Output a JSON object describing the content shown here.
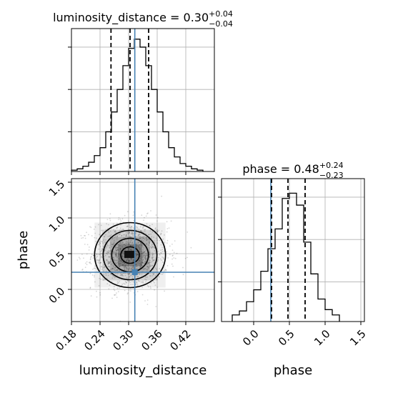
{
  "chart_data": {
    "type": "corner",
    "colors": {
      "truth": "#4682b4",
      "hist": "#000000",
      "grid": "#b0b0b0",
      "quantile": "#000000"
    },
    "parameters": [
      {
        "name": "luminosity_distance",
        "xlabel": "luminosity_distance"
      },
      {
        "name": "phase",
        "xlabel": "phase",
        "ylabel": "phase"
      }
    ],
    "grid": true,
    "panels": {
      "hist_ld": {
        "title": {
          "prefix": "luminosity_distance = 0.30",
          "sup": "+0.04",
          "sub": "−0.04"
        },
        "xlim": [
          0.18,
          0.48
        ],
        "ylim": [
          0,
          1.08
        ],
        "bin_edges": [
          0.18,
          0.192,
          0.204,
          0.216,
          0.228,
          0.24,
          0.252,
          0.264,
          0.276,
          0.288,
          0.3,
          0.312,
          0.324,
          0.336,
          0.348,
          0.36,
          0.372,
          0.384,
          0.396,
          0.408,
          0.42,
          0.432,
          0.444,
          0.456
        ],
        "counts": [
          0.01,
          0.02,
          0.04,
          0.07,
          0.12,
          0.18,
          0.3,
          0.45,
          0.62,
          0.8,
          0.93,
          1.0,
          0.94,
          0.8,
          0.62,
          0.45,
          0.3,
          0.18,
          0.11,
          0.06,
          0.04,
          0.02,
          0.01
        ],
        "quantiles": [
          0.263,
          0.303,
          0.342
        ],
        "truth": 0.313,
        "xticks": [
          0.18,
          0.24,
          0.3,
          0.36,
          0.42
        ],
        "yticks": [
          0.3,
          0.62,
          0.94
        ]
      },
      "hist_phase": {
        "title": {
          "prefix": "phase = 0.48",
          "sup": "+0.24",
          "sub": "−0.23"
        },
        "xlim": [
          -0.45,
          1.55
        ],
        "ylim": [
          0,
          1.08
        ],
        "bin_edges": [
          -0.3,
          -0.2,
          -0.1,
          0.0,
          0.1,
          0.2,
          0.3,
          0.4,
          0.5,
          0.6,
          0.7,
          0.8,
          0.9,
          1.0,
          1.1,
          1.2
        ],
        "counts": [
          0.05,
          0.08,
          0.15,
          0.24,
          0.38,
          0.55,
          0.7,
          0.93,
          0.97,
          0.88,
          0.6,
          0.36,
          0.17,
          0.09,
          0.05
        ],
        "quantiles": [
          0.25,
          0.48,
          0.72
        ],
        "truth": 0.24,
        "xticks": [
          0.0,
          0.5,
          1.0,
          1.5
        ],
        "xtick_labels": [
          "0.0",
          "0.5",
          "1.0",
          "1.5"
        ],
        "yticks": [
          0.3,
          0.62,
          0.94
        ]
      },
      "scatter": {
        "xlim": [
          0.18,
          0.48
        ],
        "ylim": [
          -0.45,
          1.55
        ],
        "xticks": [
          0.18,
          0.24,
          0.3,
          0.36,
          0.42
        ],
        "xtick_labels": [
          "0.18",
          "0.24",
          "0.30",
          "0.36",
          "0.42"
        ],
        "yticks": [
          0.0,
          0.5,
          1.0,
          1.5
        ],
        "ytick_labels": [
          "0.0",
          "0.5",
          "1.0",
          "1.5"
        ],
        "center": [
          0.303,
          0.48
        ],
        "sigma": [
          0.04,
          0.24
        ],
        "truth": [
          0.313,
          0.24
        ],
        "contour_levels": [
          {
            "rx": 0.0195,
            "ry": 0.115
          },
          {
            "rx": 0.0385,
            "ry": 0.235
          },
          {
            "rx": 0.0565,
            "ry": 0.345
          },
          {
            "rx": 0.0745,
            "ry": 0.455
          }
        ]
      }
    }
  }
}
